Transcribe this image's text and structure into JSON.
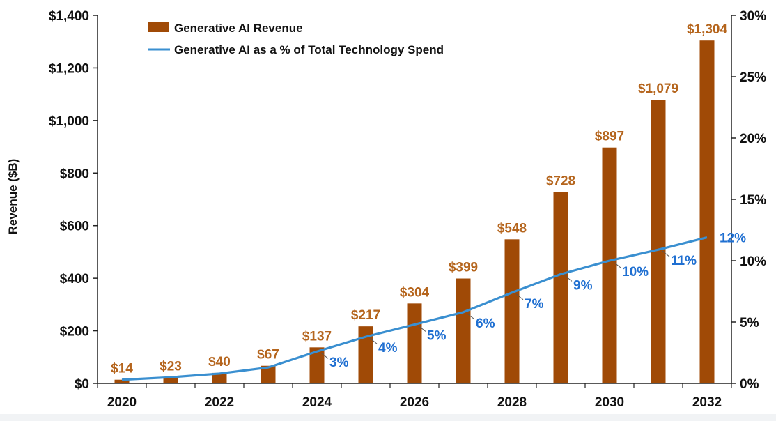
{
  "chart_data": {
    "type": "bar+line",
    "categories": [
      "2020",
      "2021",
      "2022",
      "2023",
      "2024",
      "2025",
      "2026",
      "2027",
      "2028",
      "2029",
      "2030",
      "2031",
      "2032"
    ],
    "x_tick_labels": [
      "2020",
      "2022",
      "2024",
      "2026",
      "2028",
      "2030",
      "2032"
    ],
    "series": [
      {
        "name": "Generative AI Revenue",
        "type": "bar",
        "axis": "left",
        "values": [
          14,
          23,
          40,
          67,
          137,
          217,
          304,
          399,
          548,
          728,
          897,
          1079,
          1304
        ],
        "labels": [
          "$14",
          "$23",
          "$40",
          "$67",
          "$137",
          "$217",
          "$304",
          "$399",
          "$548",
          "$728",
          "$897",
          "$1,079",
          "$1,304"
        ]
      },
      {
        "name": "Generative AI as a % of Total Technology Spend",
        "type": "line",
        "axis": "right",
        "values": [
          0.3,
          0.5,
          0.8,
          1.3,
          2.6,
          3.8,
          4.8,
          5.8,
          7.4,
          8.9,
          10.0,
          10.9,
          11.9
        ],
        "labels": [
          "",
          "",
          "",
          "",
          "3%",
          "4%",
          "5%",
          "6%",
          "7%",
          "9%",
          "10%",
          "11%",
          "12%"
        ]
      }
    ],
    "ylabel": "Revenue ($B)",
    "ylim": [
      0,
      1400
    ],
    "y_ticks": [
      0,
      200,
      400,
      600,
      800,
      1000,
      1200,
      1400
    ],
    "y_tick_labels": [
      "$0",
      "$200",
      "$400",
      "$600",
      "$800",
      "$1,000",
      "$1,200",
      "$1,400"
    ],
    "y2lim": [
      0,
      30
    ],
    "y2_ticks": [
      0,
      5,
      10,
      15,
      20,
      25,
      30
    ],
    "y2_tick_labels": [
      "0%",
      "5%",
      "10%",
      "15%",
      "20%",
      "25%",
      "30%"
    ],
    "grid": false,
    "legend_position": "top-left",
    "colors": {
      "bar": "#a04a06",
      "bar_label": "#b5651d",
      "line": "#3a8fd0",
      "line_label": "#1f6fd1",
      "axis": "#222222"
    }
  }
}
